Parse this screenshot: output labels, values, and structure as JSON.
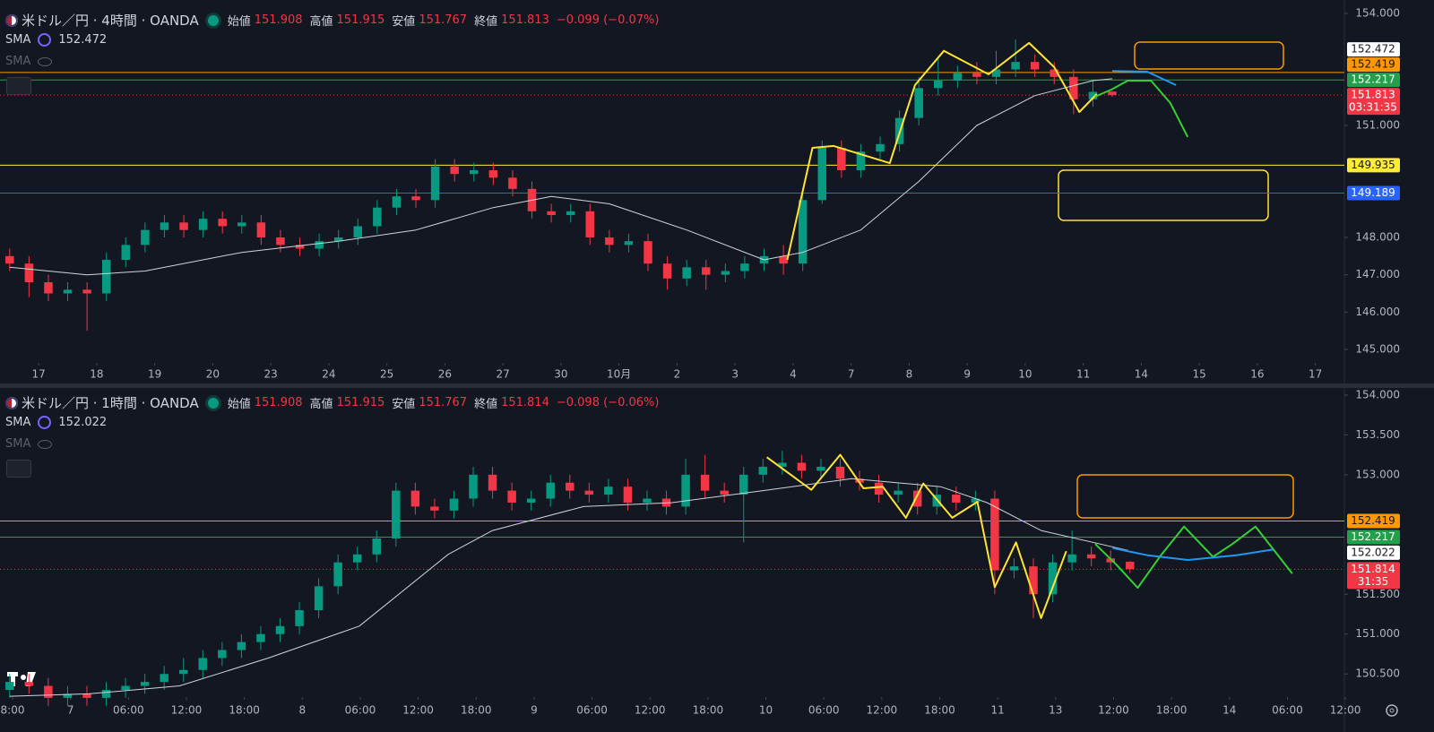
{
  "chart_data": [
    {
      "type": "candlestick",
      "symbol": "米ドル／円 · 4時間 · OANDA",
      "ohlc": [
        {
          "label": "始値",
          "value": 151.908
        },
        {
          "label": "高値",
          "value": 151.915
        },
        {
          "label": "安値",
          "value": 151.767
        },
        {
          "label": "終値",
          "value": 151.813
        }
      ],
      "change": "−0.099 (−0.07%)",
      "indicators": [
        {
          "name": "SMA",
          "value": 152.472,
          "color": "#7b61ff"
        },
        {
          "name": "SMA",
          "hidden": true
        }
      ],
      "up_color": "#089981",
      "down_color": "#f23645",
      "xlim": [
        -0.5,
        69
      ],
      "xticks": [
        {
          "value": 1.5,
          "label": "17"
        },
        {
          "value": 4.5,
          "label": "18"
        },
        {
          "value": 7.5,
          "label": "19"
        },
        {
          "value": 10.5,
          "label": "20"
        },
        {
          "value": 13.5,
          "label": "23"
        },
        {
          "value": 16.5,
          "label": "24"
        },
        {
          "value": 19.5,
          "label": "25"
        },
        {
          "value": 22.5,
          "label": "26"
        },
        {
          "value": 25.5,
          "label": "27"
        },
        {
          "value": 28.5,
          "label": "30"
        },
        {
          "value": 31.5,
          "label": "10月"
        },
        {
          "value": 34.5,
          "label": "2"
        },
        {
          "value": 37.5,
          "label": "3"
        },
        {
          "value": 40.5,
          "label": "4"
        },
        {
          "value": 43.5,
          "label": "7"
        },
        {
          "value": 46.5,
          "label": "8"
        },
        {
          "value": 49.5,
          "label": "9"
        },
        {
          "value": 52.5,
          "label": "10"
        },
        {
          "value": 55.5,
          "label": "11"
        },
        {
          "value": 58.5,
          "label": "14"
        },
        {
          "value": 61.5,
          "label": "15"
        },
        {
          "value": 64.5,
          "label": "16"
        },
        {
          "value": 67.5,
          "label": "17"
        }
      ],
      "ylim": [
        144.64,
        154.36
      ],
      "yticks": [
        {
          "value": 145,
          "label": "145.000"
        },
        {
          "value": 146,
          "label": "146.000"
        },
        {
          "value": 147,
          "label": "147.000"
        },
        {
          "value": 148,
          "label": "148.000"
        },
        {
          "value": 151,
          "label": "151.000"
        },
        {
          "value": 154,
          "label": "154.000"
        }
      ],
      "open": [
        147.5,
        147.3,
        146.8,
        146.5,
        146.6,
        146.5,
        147.4,
        147.8,
        148.2,
        148.4,
        148.2,
        148.5,
        148.3,
        148.4,
        148.0,
        147.8,
        147.7,
        147.9,
        148.0,
        148.3,
        148.8,
        149.1,
        149.0,
        149.9,
        149.7,
        149.8,
        149.6,
        149.3,
        148.7,
        148.6,
        148.7,
        148.0,
        147.8,
        147.9,
        147.3,
        146.9,
        147.2,
        147.0,
        147.1,
        147.3,
        147.5,
        147.3,
        149.0,
        150.4,
        149.8,
        150.3,
        150.5,
        151.2,
        152.0,
        152.2,
        152.4,
        152.3,
        152.5,
        152.7,
        152.5,
        152.3,
        151.7,
        151.908
      ],
      "high": [
        147.7,
        147.5,
        147.0,
        146.8,
        146.8,
        147.6,
        148.0,
        148.4,
        148.6,
        148.6,
        148.7,
        148.7,
        148.6,
        148.6,
        148.2,
        148.0,
        148.1,
        148.2,
        148.5,
        149.0,
        149.3,
        149.3,
        150.1,
        150.1,
        150.0,
        150.0,
        149.8,
        149.5,
        148.9,
        148.9,
        148.9,
        148.2,
        148.1,
        148.1,
        147.5,
        147.4,
        147.4,
        147.3,
        147.5,
        147.7,
        147.8,
        149.3,
        150.6,
        150.6,
        150.5,
        150.7,
        151.4,
        152.3,
        152.8,
        152.6,
        152.7,
        153.0,
        153.3,
        152.9,
        152.7,
        152.5,
        152.2,
        151.915
      ],
      "low": [
        147.1,
        146.4,
        146.3,
        146.3,
        145.5,
        146.3,
        147.2,
        147.6,
        148.0,
        148.0,
        148.0,
        148.1,
        148.1,
        147.8,
        147.6,
        147.5,
        147.5,
        147.7,
        147.8,
        148.1,
        148.6,
        148.8,
        148.8,
        149.5,
        149.5,
        149.4,
        149.1,
        148.5,
        148.4,
        148.4,
        147.8,
        147.6,
        147.6,
        147.1,
        146.6,
        146.7,
        146.6,
        146.8,
        146.9,
        147.1,
        147.0,
        147.1,
        148.9,
        149.6,
        149.6,
        150.1,
        150.3,
        151.0,
        151.8,
        152.0,
        152.1,
        152.1,
        152.3,
        152.3,
        152.1,
        151.3,
        151.5,
        151.767
      ],
      "close": [
        147.3,
        146.8,
        146.5,
        146.6,
        146.5,
        147.4,
        147.8,
        148.2,
        148.4,
        148.2,
        148.5,
        148.3,
        148.4,
        148.0,
        147.8,
        147.7,
        147.9,
        148.0,
        148.3,
        148.8,
        149.1,
        149.0,
        149.9,
        149.7,
        149.8,
        149.6,
        149.3,
        148.7,
        148.6,
        148.7,
        148.0,
        147.8,
        147.9,
        147.3,
        146.9,
        147.2,
        147.0,
        147.1,
        147.3,
        147.5,
        147.3,
        149.0,
        150.4,
        149.8,
        150.3,
        150.5,
        151.2,
        152.0,
        152.2,
        152.4,
        152.3,
        152.5,
        152.7,
        152.5,
        152.3,
        151.7,
        151.9,
        151.813
      ],
      "sma": {
        "color": "#d1d4dc",
        "x": [
          0,
          4,
          7,
          12,
          17,
          21,
          25,
          28,
          31,
          35,
          39,
          41,
          44,
          47,
          50,
          53,
          56,
          57
        ],
        "values": [
          147.2,
          147.0,
          147.1,
          147.6,
          147.9,
          148.2,
          148.8,
          149.1,
          148.9,
          148.2,
          147.4,
          147.6,
          148.2,
          149.5,
          151.0,
          151.8,
          152.2,
          152.25
        ]
      },
      "drawings": [
        {
          "color": "#ffe433",
          "x": [
            40.2,
            41.5,
            42.6,
            45.5,
            46.8,
            48.3,
            50.6,
            52.7,
            54.0,
            55.3,
            56.2
          ],
          "values": [
            147.4,
            150.4,
            150.45,
            149.99,
            152.08,
            153.0,
            152.37,
            153.21,
            152.56,
            151.36,
            151.84
          ]
        },
        {
          "color": "#34d134",
          "x": [
            56.1,
            56.96,
            57.8,
            59.0,
            60.0,
            60.9
          ],
          "values": [
            151.77,
            151.96,
            152.2,
            152.2,
            151.6,
            150.69
          ]
        },
        {
          "color": "#2196f3",
          "x": [
            57.0,
            58.8,
            60.3
          ],
          "values": [
            152.46,
            152.44,
            152.08
          ]
        }
      ],
      "levels": [
        {
          "value": 152.419,
          "color": "#ff9800"
        },
        {
          "value": 152.217,
          "color": "#22a04b"
        },
        {
          "value": 151.813,
          "color": "#f23645",
          "dash": true,
          "countdown": "03:31:35"
        },
        {
          "value": 149.935,
          "color": "#ffeb3b"
        },
        {
          "value": 149.189,
          "color": "#2962ff"
        }
      ]
    },
    {
      "type": "candlestick",
      "symbol": "米ドル／円 · 1時間 · OANDA",
      "ohlc": [
        {
          "label": "始値",
          "value": 151.908
        },
        {
          "label": "高値",
          "value": 151.915
        },
        {
          "label": "安値",
          "value": 151.767
        },
        {
          "label": "終値",
          "value": 151.814
        }
      ],
      "change": "−0.098 (−0.06%)",
      "indicators": [
        {
          "name": "SMA",
          "value": 152.022,
          "color": "#7b61ff"
        },
        {
          "name": "SMA",
          "hidden": true
        }
      ],
      "up_color": "#089981",
      "down_color": "#f23645",
      "xlim": [
        -0.5,
        69.1
      ],
      "xticks": [
        {
          "value": 0.15,
          "label": "8:00"
        },
        {
          "value": 3.15,
          "label": "7"
        },
        {
          "value": 6.15,
          "label": "06:00"
        },
        {
          "value": 9.15,
          "label": "12:00"
        },
        {
          "value": 12.15,
          "label": "18:00"
        },
        {
          "value": 15.15,
          "label": "8"
        },
        {
          "value": 18.15,
          "label": "06:00"
        },
        {
          "value": 21.15,
          "label": "12:00"
        },
        {
          "value": 24.15,
          "label": "18:00"
        },
        {
          "value": 27.15,
          "label": "9"
        },
        {
          "value": 30.15,
          "label": "06:00"
        },
        {
          "value": 33.15,
          "label": "12:00"
        },
        {
          "value": 36.15,
          "label": "18:00"
        },
        {
          "value": 39.15,
          "label": "10"
        },
        {
          "value": 42.15,
          "label": "06:00"
        },
        {
          "value": 45.15,
          "label": "12:00"
        },
        {
          "value": 48.15,
          "label": "18:00"
        },
        {
          "value": 51.15,
          "label": "11"
        },
        {
          "value": 54.15,
          "label": "13"
        },
        {
          "value": 57.15,
          "label": "12:00"
        },
        {
          "value": 60.15,
          "label": "18:00"
        },
        {
          "value": 63.15,
          "label": "14"
        },
        {
          "value": 66.15,
          "label": "06:00"
        },
        {
          "value": 69.15,
          "label": "12:00"
        }
      ],
      "ylim": [
        150.21,
        154.1
      ],
      "yticks": [
        {
          "value": 150.5,
          "label": "150.500"
        },
        {
          "value": 151,
          "label": "151.000"
        },
        {
          "value": 151.5,
          "label": "151.500"
        },
        {
          "value": 153,
          "label": "153.000"
        },
        {
          "value": 153.5,
          "label": "153.500"
        },
        {
          "value": 154,
          "label": "154.000"
        }
      ],
      "open": [
        150.3,
        150.4,
        150.35,
        150.2,
        150.25,
        150.2,
        150.3,
        150.35,
        150.4,
        150.5,
        150.55,
        150.7,
        150.8,
        150.9,
        151.0,
        151.1,
        151.3,
        151.6,
        151.9,
        152.0,
        152.2,
        152.8,
        152.6,
        152.55,
        152.7,
        153.0,
        152.8,
        152.65,
        152.7,
        152.9,
        152.8,
        152.75,
        152.85,
        152.65,
        152.7,
        152.6,
        153.0,
        152.8,
        152.75,
        153.0,
        153.1,
        153.15,
        153.05,
        153.1,
        152.95,
        152.9,
        152.75,
        152.8,
        152.6,
        152.75,
        152.65,
        152.7,
        151.8,
        151.85,
        151.5,
        151.9,
        152.0,
        151.95,
        151.908
      ],
      "high": [
        150.5,
        150.5,
        150.45,
        150.35,
        150.35,
        150.4,
        150.45,
        150.5,
        150.6,
        150.7,
        150.8,
        150.9,
        151.0,
        151.1,
        151.2,
        151.4,
        151.7,
        152.0,
        152.1,
        152.3,
        152.9,
        152.9,
        152.7,
        152.8,
        153.1,
        153.1,
        152.9,
        152.8,
        153.0,
        153.0,
        152.9,
        152.95,
        152.95,
        152.8,
        152.8,
        153.2,
        153.25,
        152.9,
        153.1,
        153.2,
        153.3,
        153.25,
        153.2,
        153.2,
        153.05,
        153.0,
        152.9,
        152.9,
        152.85,
        152.85,
        152.8,
        152.8,
        151.95,
        151.95,
        152.0,
        152.3,
        152.1,
        152.05,
        151.915
      ],
      "low": [
        150.2,
        150.25,
        150.1,
        150.1,
        150.1,
        150.1,
        150.2,
        150.25,
        150.3,
        150.4,
        150.45,
        150.6,
        150.7,
        150.8,
        150.9,
        151.0,
        151.2,
        151.5,
        151.8,
        151.9,
        152.1,
        152.5,
        152.45,
        152.45,
        152.6,
        152.7,
        152.55,
        152.55,
        152.6,
        152.7,
        152.65,
        152.65,
        152.55,
        152.55,
        152.5,
        152.5,
        152.7,
        152.65,
        152.15,
        152.9,
        153.0,
        152.95,
        152.95,
        152.85,
        152.8,
        152.65,
        152.65,
        152.5,
        152.5,
        152.55,
        152.55,
        151.5,
        151.7,
        151.2,
        151.4,
        151.8,
        151.85,
        151.8,
        151.767
      ],
      "close": [
        150.4,
        150.35,
        150.2,
        150.25,
        150.2,
        150.3,
        150.35,
        150.4,
        150.5,
        150.55,
        150.7,
        150.8,
        150.9,
        151.0,
        151.1,
        151.3,
        151.6,
        151.9,
        152.0,
        152.2,
        152.8,
        152.6,
        152.55,
        152.7,
        153.0,
        152.8,
        152.65,
        152.7,
        152.9,
        152.8,
        152.75,
        152.85,
        152.65,
        152.7,
        152.6,
        153.0,
        152.8,
        152.75,
        153.0,
        153.1,
        153.15,
        153.05,
        153.1,
        152.95,
        152.9,
        152.75,
        152.8,
        152.6,
        152.75,
        152.65,
        152.7,
        151.8,
        151.85,
        151.5,
        151.9,
        152.0,
        151.95,
        151.9,
        151.814
      ],
      "sma": {
        "color": "#d1d4dc",
        "x": [
          0,
          4.1,
          8.8,
          13.4,
          18.1,
          22.7,
          25,
          29.7,
          34.3,
          39,
          43.6,
          48.2,
          50.6,
          53.4,
          57.9
        ],
        "values": [
          150.22,
          150.25,
          150.35,
          150.7,
          151.1,
          152.0,
          152.3,
          152.6,
          152.65,
          152.8,
          152.95,
          152.85,
          152.65,
          152.3,
          152.05
        ]
      },
      "drawings": [
        {
          "color": "#ffe433",
          "x": [
            39.2,
            41.5,
            43.0,
            44.2,
            45.2,
            46.4,
            47.3,
            48.8,
            50.1,
            51.0,
            52.1,
            53.4,
            54.7
          ],
          "values": [
            153.22,
            152.81,
            153.25,
            152.83,
            152.85,
            152.46,
            152.89,
            152.46,
            152.66,
            151.59,
            152.15,
            151.2,
            152.04
          ]
        },
        {
          "color": "#34d134",
          "x": [
            56.2,
            57.3,
            58.4,
            59.6,
            60.8,
            62.3,
            63.3,
            64.5,
            66.4
          ],
          "values": [
            152.13,
            151.87,
            151.58,
            151.99,
            152.35,
            151.97,
            152.13,
            152.35,
            151.76
          ]
        },
        {
          "color": "#2196f3",
          "x": [
            57.1,
            58.9,
            61.0,
            63.5,
            65.4
          ],
          "values": [
            152.08,
            151.99,
            151.93,
            151.99,
            152.06
          ]
        }
      ],
      "levels": [
        {
          "value": 152.419,
          "color": "#ff9800"
        },
        {
          "value": 152.217,
          "color": "#22a04b"
        },
        {
          "value": 151.814,
          "color": "#f23645",
          "dash": true,
          "countdown": "31:35"
        }
      ]
    }
  ]
}
